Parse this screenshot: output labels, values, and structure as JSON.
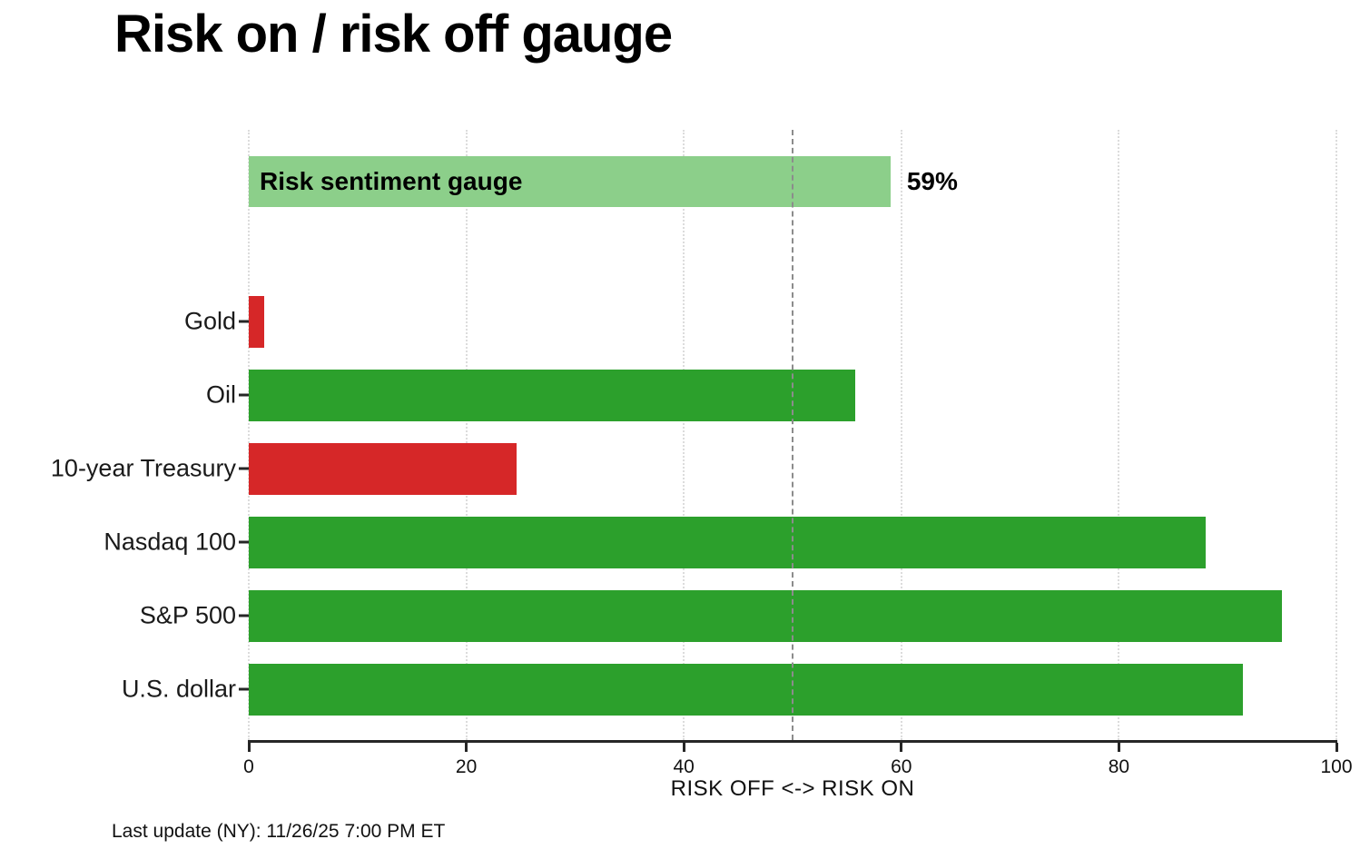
{
  "title": "Risk on / risk off gauge",
  "footnote": "Last update (NY): 11/26/25 7:00 PM ET",
  "chart_data": {
    "type": "bar",
    "orientation": "horizontal",
    "title": "Risk on / risk off gauge",
    "xlabel": "RISK OFF <-> RISK ON",
    "xlim": [
      0,
      100
    ],
    "xticks": [
      0,
      20,
      40,
      60,
      80,
      100
    ],
    "grid": "vertical-dotted",
    "threshold": {
      "x": 50,
      "style": "dashed"
    },
    "gauge": {
      "label": "Risk sentiment gauge",
      "value": 59,
      "annotation": "59%"
    },
    "categories": [
      "Gold",
      "Oil",
      "10-year Treasury",
      "Nasdaq 100",
      "S&P 500",
      "U.S. dollar"
    ],
    "values": [
      1.4,
      55.8,
      24.6,
      88,
      95,
      91.4
    ],
    "bar_colors": [
      "#d62728",
      "#2ca02c",
      "#d62728",
      "#2ca02c",
      "#2ca02c",
      "#2ca02c"
    ],
    "colors": {
      "risk_on_green": "#2ca02c",
      "risk_off_red": "#d62728",
      "gauge_green": "#8ccf8a",
      "threshold_gray": "#8c8c8c",
      "grid_gray": "#dcdcdc",
      "axis_dark": "#262626"
    }
  }
}
